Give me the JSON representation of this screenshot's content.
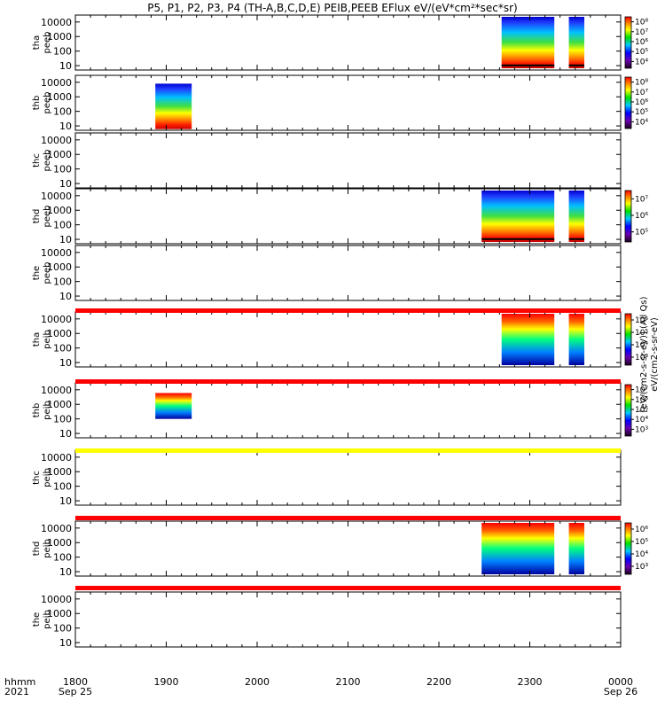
{
  "chart_data": {
    "type": "heatmap",
    "title": "P5, P1, P2, P3, P4 (TH-A,B,C,D,E) PEIB,PEEB EFlux eV/(eV*cm²*sec*sr)",
    "x_axis": {
      "row_label": "hhmm",
      "year_label": "2021",
      "ticks": [
        "1800",
        "1900",
        "2000",
        "2100",
        "2200",
        "2300",
        "0000"
      ],
      "tick_sublabels": [
        "Sep 25",
        "",
        "",
        "",
        "",
        "",
        "Sep 26"
      ],
      "range_hours": [
        18,
        24
      ]
    },
    "y_axis": {
      "scale": "log",
      "ticks": [
        "10",
        "100",
        "1000",
        "10000"
      ],
      "range": [
        5,
        30000
      ]
    },
    "cbar_text_left": "[eV/(cm2-s-sr-eV)] (All Qs)",
    "cbar_text_right": "eV/(cm2-s-sr-eV)",
    "panels": [
      {
        "label": "tha\npeeb",
        "cbar_ticks": [
          "10⁴",
          "10⁵",
          "10⁶",
          "10⁷",
          "10⁸"
        ],
        "data_blocks": [
          {
            "x0": 22.69,
            "x1": 23.27
          },
          {
            "x0": 23.43,
            "x1": 23.6
          }
        ],
        "black_dots": true
      },
      {
        "label": "thb\npeeb",
        "cbar_ticks": [
          "10⁴",
          "10⁵",
          "10⁶",
          "10⁷",
          "10⁸"
        ],
        "data_blocks": [
          {
            "x0": 18.88,
            "x1": 19.28
          }
        ]
      },
      {
        "label": "thc\npeeb",
        "cbar_ticks": [],
        "data_blocks": []
      },
      {
        "label": "thd\npeeb",
        "cbar_ticks": [
          "10⁵",
          "10⁶",
          "10⁷"
        ],
        "data_blocks": [
          {
            "x0": 22.47,
            "x1": 23.27
          },
          {
            "x0": 23.43,
            "x1": 23.6
          }
        ],
        "black_dots": true
      },
      {
        "label": "the\npeeb",
        "cbar_ticks": [],
        "data_blocks": []
      },
      {
        "label": "tha\npeib",
        "cbar_ticks": [
          "10³",
          "10⁴",
          "10⁵",
          "10⁶"
        ],
        "data_blocks": [
          {
            "x0": 22.69,
            "x1": 23.27
          },
          {
            "x0": 23.43,
            "x1": 23.6
          }
        ]
      },
      {
        "label": "thb\npeib",
        "cbar_ticks": [
          "10³",
          "10⁴",
          "10⁵",
          "10⁶",
          "10⁷"
        ],
        "data_blocks": [
          {
            "x0": 18.88,
            "x1": 19.28
          }
        ]
      },
      {
        "label": "thc\npeib",
        "cbar_ticks": [],
        "data_blocks": []
      },
      {
        "label": "thd\npeib",
        "cbar_ticks": [
          "10³",
          "10⁴",
          "10⁵",
          "10⁶"
        ],
        "data_blocks": [
          {
            "x0": 22.47,
            "x1": 23.27
          },
          {
            "x0": 23.43,
            "x1": 23.6
          }
        ]
      },
      {
        "label": "the\npeib",
        "cbar_ticks": [],
        "data_blocks": []
      }
    ],
    "status_bars": [
      {
        "after_panel": 4,
        "color": "#ff0000"
      },
      {
        "after_panel": 5,
        "color": "#ff0000"
      },
      {
        "after_panel": 6,
        "color": "#ffff00"
      },
      {
        "after_panel": 7,
        "color": "#ff0000"
      },
      {
        "after_panel": 8,
        "color": "#ff0000"
      }
    ]
  }
}
